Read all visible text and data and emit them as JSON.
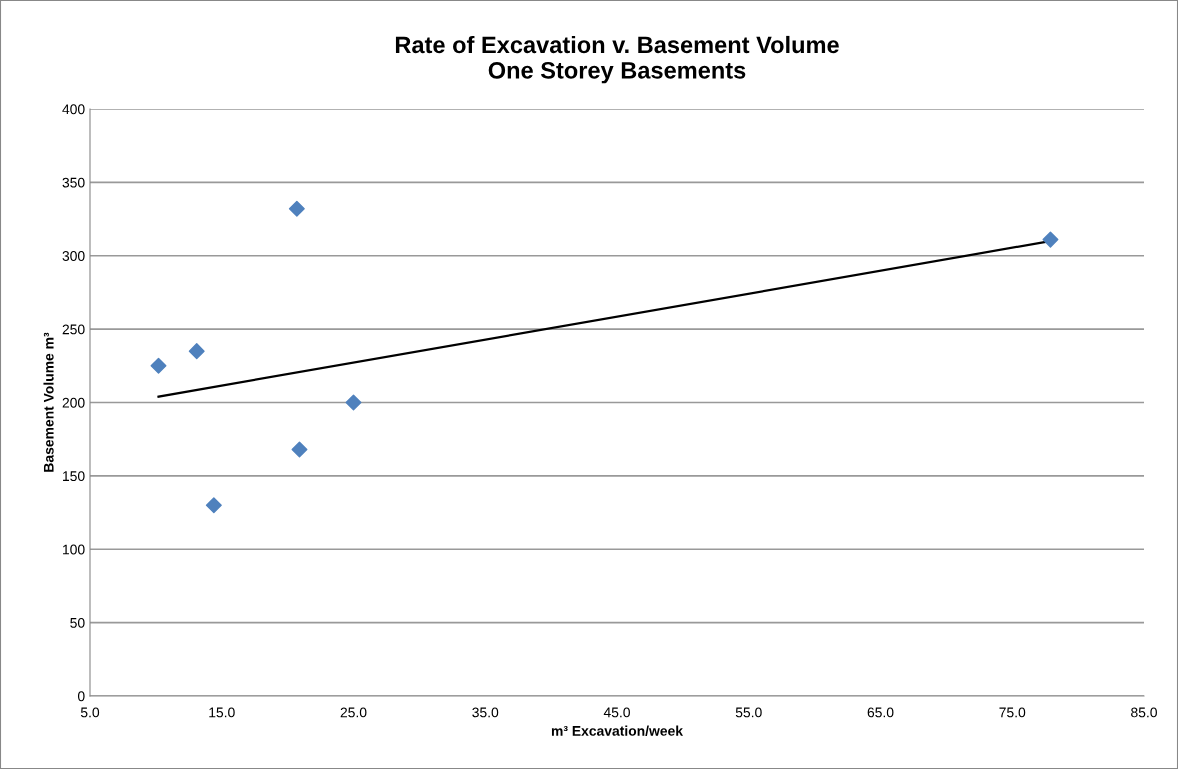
{
  "chart_data": {
    "type": "scatter",
    "title": "Rate of Excavation v. Basement Volume\nOne Storey Basements",
    "xlabel": "m³ Excavation/week",
    "ylabel": "Basement Volume m³",
    "series": [
      {
        "color": "#4f81bd",
        "x": [
          10.2,
          13.1,
          14.4,
          20.7,
          20.9,
          25.0,
          77.9
        ],
        "values": [
          225,
          235,
          130,
          332,
          168,
          200,
          311
        ],
        "marker": "diamond"
      },
      {
        "type": "line",
        "color": "#000000",
        "x": [
          10.2,
          77.9
        ],
        "values": [
          204,
          310
        ],
        "marker": "none",
        "line_style": "solid"
      }
    ],
    "xlim": [
      5,
      85
    ],
    "xticks": [
      {
        "value": 5,
        "label": "5.0"
      },
      {
        "value": 15,
        "label": "15.0"
      },
      {
        "value": 25,
        "label": "25.0"
      },
      {
        "value": 35,
        "label": "35.0"
      },
      {
        "value": 45,
        "label": "45.0"
      },
      {
        "value": 55,
        "label": "55.0"
      },
      {
        "value": 65,
        "label": "65.0"
      },
      {
        "value": 75,
        "label": "75.0"
      },
      {
        "value": 85,
        "label": "85.0"
      }
    ],
    "ylim": [
      0,
      400
    ],
    "yticks": [
      0,
      50,
      100,
      150,
      200,
      250,
      300,
      350,
      400
    ],
    "grid": "y",
    "legend": false
  }
}
